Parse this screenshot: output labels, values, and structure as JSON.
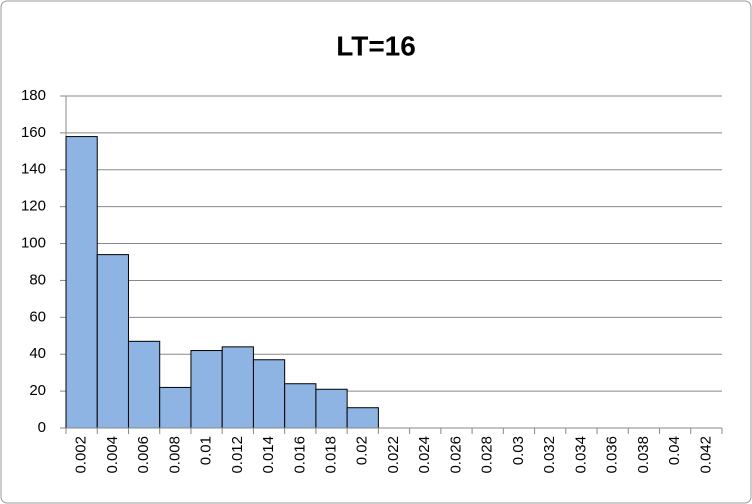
{
  "chart_data": {
    "type": "bar",
    "title": "LT=16",
    "categories": [
      "0.002",
      "0.004",
      "0.006",
      "0.008",
      "0.01",
      "0.012",
      "0.014",
      "0.016",
      "0.018",
      "0.02",
      "0.022",
      "0.024",
      "0.026",
      "0.028",
      "0.03",
      "0.032",
      "0.034",
      "0.036",
      "0.038",
      "0.04",
      "0.042"
    ],
    "values": [
      158,
      94,
      47,
      22,
      42,
      44,
      37,
      24,
      21,
      11,
      0,
      0,
      0,
      0,
      0,
      0,
      0,
      0,
      0,
      0,
      0
    ],
    "color": "#8eb4e3",
    "ylim": [
      0,
      180
    ],
    "yticks": [
      0,
      20,
      40,
      60,
      80,
      100,
      120,
      140,
      160,
      180
    ],
    "grid": true
  }
}
